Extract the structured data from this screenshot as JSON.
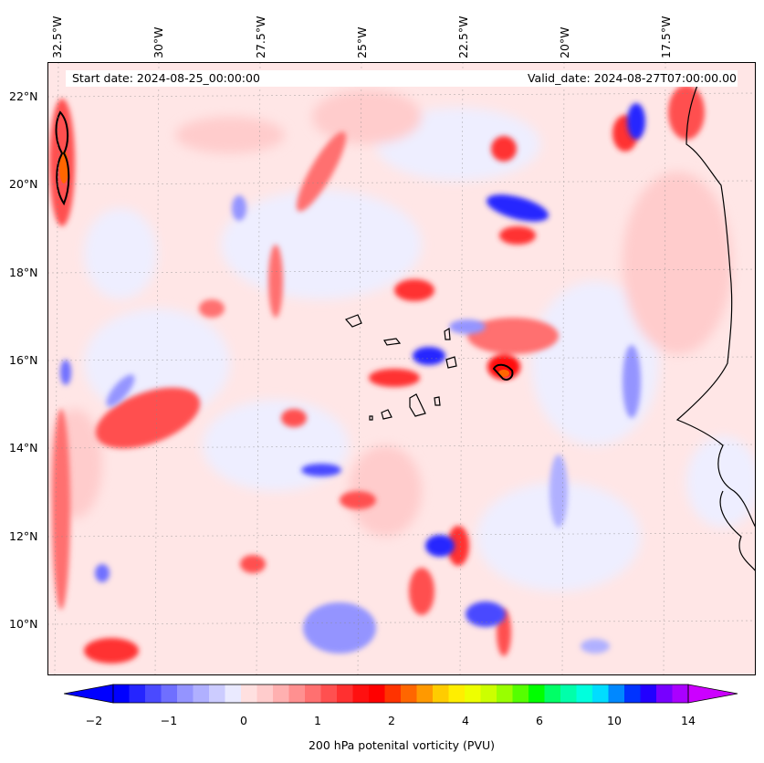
{
  "header": {
    "start_label": "Start date: 2024-08-25_00:00:00",
    "valid_label": "Valid_date: 2024-08-27T07:00:00.00"
  },
  "map": {
    "longitude_labels": [
      "32.5°W",
      "30°W",
      "27.5°W",
      "25°W",
      "22.5°W",
      "20°W",
      "17.5°W"
    ],
    "latitude_labels": [
      "22°N",
      "20°N",
      "18°N",
      "16°N",
      "14°N",
      "12°N",
      "10°N"
    ],
    "field": "200 hPa potential vorticity",
    "extent_lon": [
      -33,
      -15.5
    ],
    "extent_lat": [
      8.8,
      22.8
    ]
  },
  "colorbar": {
    "title": "200 hPa potenital vorticity (PVU)",
    "tick_labels": [
      "−2",
      "−1",
      "0",
      "1",
      "2",
      "4",
      "6",
      "10",
      "14"
    ],
    "colors": [
      "#0000ff",
      "#2525ff",
      "#4a4aff",
      "#6f6fff",
      "#9494ff",
      "#b0b0ff",
      "#ccccff",
      "#eaeaff",
      "#ffe0e0",
      "#ffcccc",
      "#ffb0b0",
      "#ff9090",
      "#ff7070",
      "#ff5050",
      "#ff3030",
      "#ff1010",
      "#ff0000",
      "#ff3300",
      "#ff6600",
      "#ff9900",
      "#ffcc00",
      "#ffee00",
      "#eeff00",
      "#ccff00",
      "#99ff00",
      "#55ff00",
      "#00ff00",
      "#00ff66",
      "#00ffaa",
      "#00ffdd",
      "#00ddff",
      "#0088ff",
      "#0033ff",
      "#2200ff",
      "#7700ff",
      "#aa00ff"
    ],
    "under_color": "#0000ff",
    "over_color": "#cc00ff"
  }
}
